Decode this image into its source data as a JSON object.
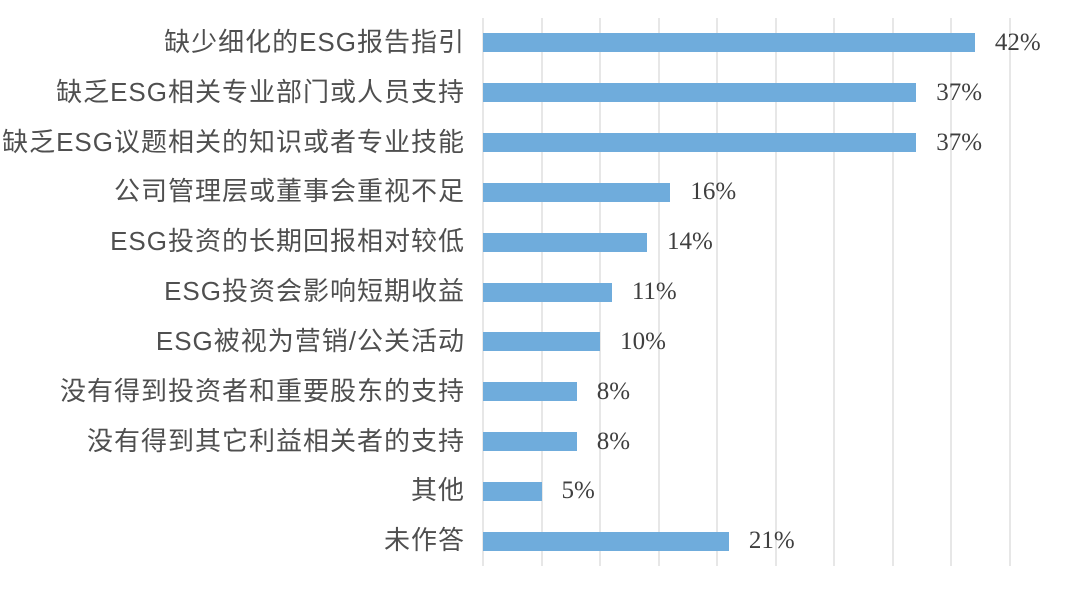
{
  "chart_data": {
    "type": "bar",
    "orientation": "horizontal",
    "title": "",
    "xlabel": "",
    "ylabel": "",
    "categories": [
      "缺少细化的ESG报告指引",
      "缺乏ESG相关专业部门或人员支持",
      "缺乏ESG议题相关的知识或者专业技能",
      "公司管理层或董事会重视不足",
      "ESG投资的长期回报相对较低",
      "ESG投资会影响短期收益",
      "ESG被视为营销/公关活动",
      "没有得到投资者和重要股东的支持",
      "没有得到其它利益相关者的支持",
      "其他",
      "未作答"
    ],
    "values": [
      42,
      37,
      37,
      16,
      14,
      11,
      10,
      8,
      8,
      5,
      21
    ],
    "value_labels": [
      "42%",
      "37%",
      "37%",
      "16%",
      "14%",
      "11%",
      "10%",
      "8%",
      "8%",
      "5%",
      "21%"
    ],
    "xlim": [
      0,
      45
    ],
    "gridline_step": 5,
    "grid": true,
    "legend": false,
    "colors": {
      "bar": "#6FACDC",
      "gridline": "#E7E7E7",
      "category_text": "#4F4F4F",
      "value_text": "#3F3F3F",
      "background": "#FFFFFF"
    }
  }
}
